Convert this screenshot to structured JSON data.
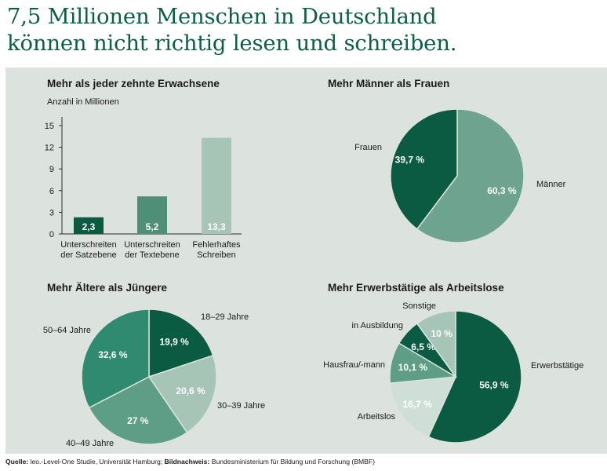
{
  "headline": [
    "7,5 Millionen Menschen in Deutschland",
    "können nicht richtig lesen und schreiben."
  ],
  "source": {
    "label1": "Quelle:",
    "text1": "leo.-Level-One Studie, Universität Hamburg;",
    "label2": "Bildnachweis:",
    "text2": "Bundesministerium für Bildung und Forschung (BMBF)"
  },
  "colors": {
    "dark": "#0b5b42",
    "mid": "#2f8a6f",
    "medium": "#5e9d86",
    "pale": "#a6c5b7",
    "lightest": "#cfded6",
    "panel": "#dce3de",
    "headline": "#0b5f45"
  },
  "chart_data": [
    {
      "type": "bar",
      "title": "Mehr als jeder zehnte Erwachsene",
      "ylabel": "Anzahl in Millionen",
      "categories": [
        [
          "Unterschreiten",
          "der Satzebene"
        ],
        [
          "Unterschreiten",
          "der Textebene"
        ],
        [
          "Fehlerhaftes",
          "Schreiben"
        ]
      ],
      "values": [
        2.3,
        5.2,
        13.3
      ],
      "value_labels": [
        "2,3",
        "5,2",
        "13,3"
      ],
      "yticks": [
        0,
        3,
        6,
        9,
        12,
        15
      ],
      "ylim": [
        0,
        15
      ],
      "colors": [
        "#0b5b42",
        "#4f8f77",
        "#a6c5b7"
      ]
    },
    {
      "type": "pie",
      "title": "Mehr Männer als Frauen",
      "slices": [
        {
          "label": "Männer",
          "value": 60.3,
          "value_label": "60,3 %",
          "color": "#6ea48f"
        },
        {
          "label": "Frauen",
          "value": 39.7,
          "value_label": "39,7 %",
          "color": "#0b5b42"
        }
      ]
    },
    {
      "type": "pie",
      "title": "Mehr Ältere als Jüngere",
      "slices": [
        {
          "label": "18–29 Jahre",
          "value": 19.9,
          "value_label": "19,9 %",
          "color": "#0b5b42"
        },
        {
          "label": "30–39 Jahre",
          "value": 20.6,
          "value_label": "20,6 %",
          "color": "#a6c5b7"
        },
        {
          "label": "40–49 Jahre",
          "value": 27,
          "value_label": "27 %",
          "color": "#5e9d86"
        },
        {
          "label": "50–64 Jahre",
          "value": 32.6,
          "value_label": "32,6 %",
          "color": "#2f8a6f"
        }
      ]
    },
    {
      "type": "pie",
      "title": "Mehr Erwerbstätige als Arbeitslose",
      "slices": [
        {
          "label": "Erwerbstätige",
          "value": 56.9,
          "value_label": "56,9 %",
          "color": "#0b5b42"
        },
        {
          "label": "Arbeitslos",
          "value": 16.7,
          "value_label": "16,7 %",
          "color": "#cfded6"
        },
        {
          "label": "Hausfrau/-mann",
          "value": 10.1,
          "value_label": "10,1 %",
          "color": "#5e9d86"
        },
        {
          "label": "in Ausbildung",
          "value": 6.5,
          "value_label": "6,5 %",
          "color": "#0b5b42"
        },
        {
          "label": "Sonstige",
          "value": 10,
          "value_label": "10 %",
          "color": "#a6c5b7"
        }
      ]
    }
  ]
}
